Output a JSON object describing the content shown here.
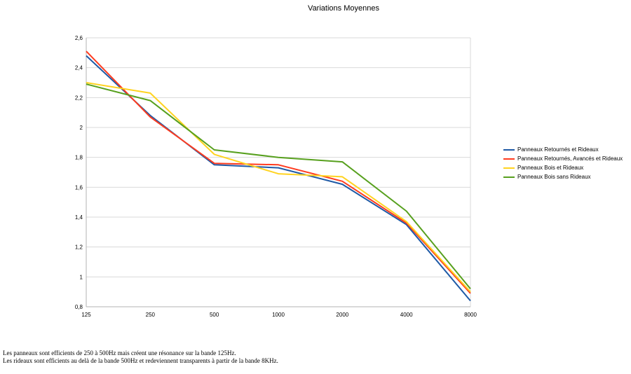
{
  "chart_data": {
    "type": "line",
    "title": "Variations Moyennes",
    "x": [
      "125",
      "250",
      "500",
      "1000",
      "2000",
      "4000",
      "8000"
    ],
    "ylim": [
      0.8,
      2.6
    ],
    "yticks": [
      "0,8",
      "1",
      "1,2",
      "1,4",
      "1,6",
      "1,8",
      "2",
      "2,2",
      "2,4",
      "2,6"
    ],
    "grid": true,
    "legend_position": "right",
    "series": [
      {
        "name": "Panneaux Retournés et Rideaux",
        "color": "#1f5aa6",
        "values": [
          2.48,
          2.08,
          1.75,
          1.73,
          1.62,
          1.35,
          0.84
        ]
      },
      {
        "name": "Panneaux Retournés, Avancés et Rideaux",
        "color": "#ff3b1f",
        "values": [
          2.51,
          2.07,
          1.76,
          1.75,
          1.64,
          1.36,
          0.89
        ]
      },
      {
        "name": "Panneaux Bois et Rideaux",
        "color": "#ffd320",
        "values": [
          2.3,
          2.23,
          1.82,
          1.69,
          1.67,
          1.37,
          0.9
        ]
      },
      {
        "name": "Panneaux Bois sans Rideaux",
        "color": "#57a01e",
        "values": [
          2.29,
          2.18,
          1.85,
          1.8,
          1.77,
          1.44,
          0.92
        ]
      }
    ]
  },
  "notes": [
    "Les panneaux sont efficients de 250 à 500Hz mais créent une résonance sur la bande 125Hz.",
    "Les rideaux sont efficients au delà de la bande 500Hz et redeviennent transparents à partir de la bande 8KHz."
  ]
}
